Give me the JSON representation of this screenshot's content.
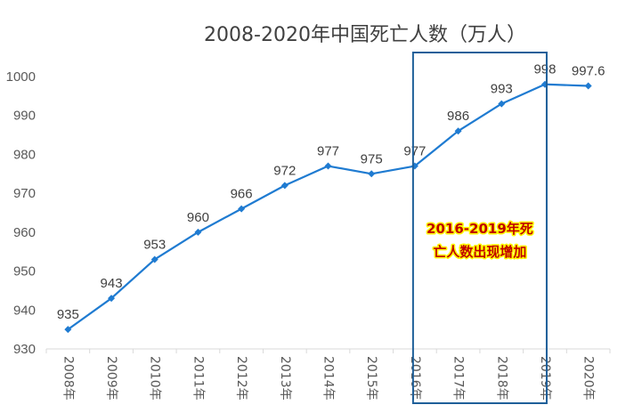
{
  "chart_data": {
    "type": "line",
    "title": "2008-2020年中国死亡人数（万人）",
    "xlabel": "",
    "ylabel": "",
    "categories": [
      "2008年",
      "2009年",
      "2010年",
      "2011年",
      "2012年",
      "2013年",
      "2014年",
      "2015年",
      "2016年",
      "2017年",
      "2018年",
      "2019年",
      "2020年"
    ],
    "series": [
      {
        "values": [
          935,
          943,
          953,
          960,
          966,
          972,
          977,
          975,
          977,
          986,
          993,
          998,
          997.6
        ],
        "labels": [
          "935",
          "943",
          "953",
          "960",
          "966",
          "972",
          "977",
          "975",
          "977",
          "986",
          "993",
          "998",
          "997.6"
        ],
        "color": "#1f7bd1"
      }
    ],
    "ylim": [
      930,
      1000
    ],
    "yticks": [
      "930",
      "940",
      "950",
      "960",
      "970",
      "980",
      "990",
      "1000"
    ],
    "grid": false,
    "legend": "none",
    "annotation": {
      "lines": [
        "2016-2019年死",
        "亡人数出现增加"
      ],
      "highlight_range": [
        "2016年",
        "2019年"
      ],
      "box_color": "#1f5f99",
      "text_color": "#c00000",
      "text_highlight": "#ffff00"
    }
  }
}
